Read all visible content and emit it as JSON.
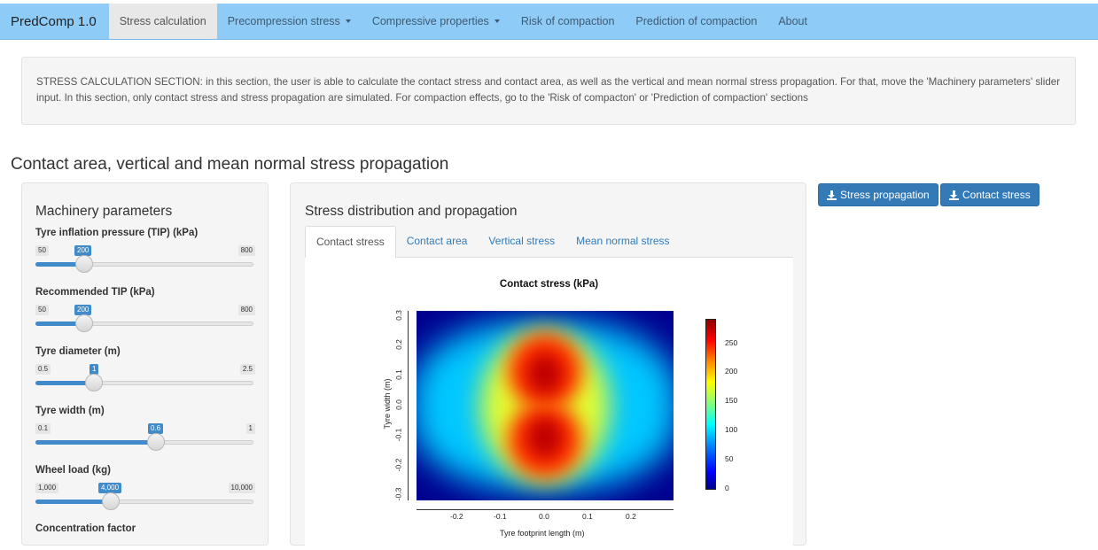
{
  "navbar": {
    "brand": "PredComp 1.0",
    "items": [
      {
        "label": "Stress calculation",
        "active": true,
        "dropdown": false
      },
      {
        "label": "Precompression stress",
        "active": false,
        "dropdown": true
      },
      {
        "label": "Compressive properties",
        "active": false,
        "dropdown": true
      },
      {
        "label": "Risk of compaction",
        "active": false,
        "dropdown": false
      },
      {
        "label": "Prediction of compaction",
        "active": false,
        "dropdown": false
      },
      {
        "label": "About",
        "active": false,
        "dropdown": false
      }
    ]
  },
  "info": {
    "text": "STRESS CALCULATION SECTION: in this section, the user is able to calculate the contact stress and contact area, as well as the vertical and mean normal stress propagation. For that, move the 'Machinery parameters' slider input. In this section, only contact stress and stress propagation are simulated. For compaction effects, go to the 'Risk of compacton' or 'Prediction of compaction' sections"
  },
  "section_title": "Contact area, vertical and mean normal stress propagation",
  "sidebar": {
    "title": "Machinery parameters",
    "sliders": [
      {
        "label": "Tyre inflation pressure (TIP) (kPa)",
        "min": "50",
        "max": "800",
        "value": "200",
        "fraction": 0.2
      },
      {
        "label": "Recommended TIP (kPa)",
        "min": "50",
        "max": "800",
        "value": "200",
        "fraction": 0.2
      },
      {
        "label": "Tyre diameter (m)",
        "min": "0.5",
        "max": "2.5",
        "value": "1",
        "fraction": 0.25
      },
      {
        "label": "Tyre width (m)",
        "min": "0.1",
        "max": "1",
        "value": "0.6",
        "fraction": 0.556
      },
      {
        "label": "Wheel load (kg)",
        "min": "1,000",
        "max": "10,000",
        "value": "4,000",
        "fraction": 0.333
      }
    ],
    "next_label": "Concentration factor"
  },
  "main": {
    "title": "Stress distribution and propagation",
    "tabs": [
      {
        "label": "Contact stress",
        "active": true
      },
      {
        "label": "Contact area",
        "active": false
      },
      {
        "label": "Vertical stress",
        "active": false
      },
      {
        "label": "Mean normal stress",
        "active": false
      }
    ]
  },
  "buttons": {
    "stress_propagation": "Stress propagation",
    "contact_stress": "Contact stress"
  },
  "chart_data": {
    "type": "heatmap",
    "title": "Contact stress (kPa)",
    "xlabel": "Tyre footprint length (m)",
    "ylabel": "Tyre width (m)",
    "xlim": [
      -0.3,
      0.3
    ],
    "ylim": [
      -0.3,
      0.3
    ],
    "x_ticks": [
      "-0.2",
      "-0.1",
      "0.0",
      "0.1",
      "0.2"
    ],
    "y_ticks": [
      "-0.3",
      "-0.2",
      "-0.1",
      "0.0",
      "0.1",
      "0.2",
      "0.3"
    ],
    "colorbar_ticks": [
      "0",
      "50",
      "100",
      "150",
      "200",
      "250"
    ],
    "colorbar_range": [
      0,
      290
    ],
    "colormap": "jet",
    "peaks": [
      {
        "x": 0.0,
        "y": 0.1,
        "value": 290
      },
      {
        "x": 0.0,
        "y": -0.1,
        "value": 290
      }
    ],
    "background_value": 0
  }
}
